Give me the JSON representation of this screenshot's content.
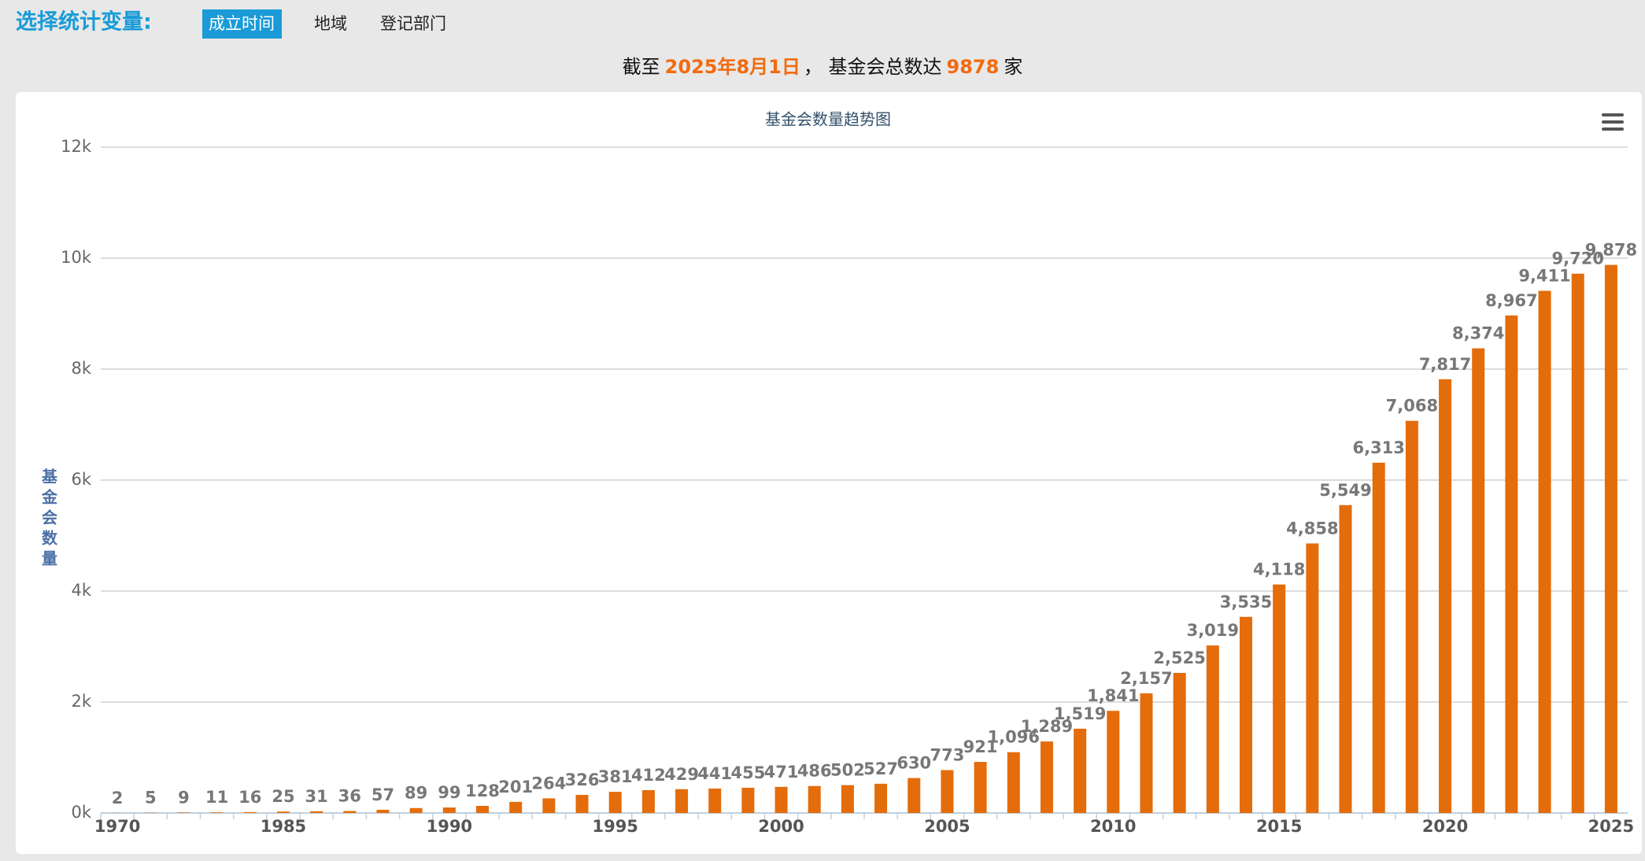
{
  "header": {
    "title": "选择统计变量:",
    "tabs": [
      "成立时间",
      "地域",
      "登记部门"
    ]
  },
  "notice": {
    "prefix": "截至",
    "date": "2025年8月1日",
    "middle": "， 基金会总数达",
    "count": "9878",
    "suffix": "家"
  },
  "chart_data": {
    "type": "bar",
    "title": "基金会数量趋势图",
    "y_label": "基金会数量",
    "color": "#e46c0a",
    "grid": true,
    "categories": [
      "1970",
      null,
      null,
      null,
      null,
      "1985",
      null,
      null,
      null,
      null,
      "1990",
      null,
      null,
      null,
      null,
      "1995",
      null,
      null,
      null,
      null,
      "2000",
      null,
      null,
      null,
      null,
      "2005",
      null,
      null,
      null,
      null,
      "2010",
      null,
      null,
      null,
      null,
      "2015",
      null,
      null,
      null,
      null,
      "2020",
      null,
      null,
      null,
      null,
      "2025"
    ],
    "values": [
      2,
      5,
      9,
      11,
      16,
      25,
      31,
      36,
      57,
      89,
      99,
      128,
      201,
      264,
      326,
      381,
      412,
      429,
      441,
      455,
      471,
      486,
      502,
      527,
      630,
      773,
      921,
      1096,
      1289,
      1519,
      1841,
      2157,
      2525,
      3019,
      3535,
      4118,
      4858,
      5549,
      6313,
      7068,
      7817,
      8374,
      8967,
      9411,
      9720,
      9878
    ],
    "value_labels": [
      "2",
      "5",
      "9",
      "11",
      "16",
      "25",
      "31",
      "36",
      "57",
      "89",
      "99",
      "128",
      "201",
      "264",
      "326",
      "381",
      "412",
      "429",
      "441",
      "455",
      "471",
      "486",
      "502",
      "527",
      "630",
      "773",
      "921",
      "1,096",
      "1,289",
      "1,519",
      "1,841",
      "2,157",
      "2,525",
      "3,019",
      "3,535",
      "4,118",
      "4,858",
      "5,549",
      "6,313",
      "7,068",
      "7,817",
      "8,374",
      "8,967",
      "9,411",
      "9,720",
      "9,878"
    ],
    "ylim": [
      0,
      12000
    ],
    "yticks": [
      {
        "value": 0,
        "label": "0k"
      },
      {
        "value": 2000,
        "label": "2k"
      },
      {
        "value": 4000,
        "label": "4k"
      },
      {
        "value": 6000,
        "label": "6k"
      },
      {
        "value": 8000,
        "label": "8k"
      },
      {
        "value": 10000,
        "label": "10k"
      },
      {
        "value": 12000,
        "label": "12k"
      }
    ]
  }
}
